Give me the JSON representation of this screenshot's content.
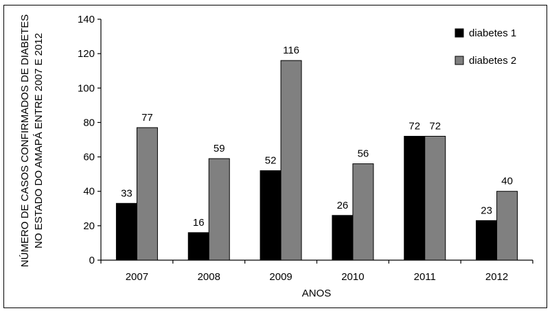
{
  "chart_data": {
    "type": "bar",
    "categories": [
      "2007",
      "2008",
      "2009",
      "2010",
      "2011",
      "2012"
    ],
    "series": [
      {
        "name": "diabetes 1",
        "values": [
          33,
          16,
          52,
          26,
          72,
          23
        ],
        "color": "#000000"
      },
      {
        "name": "diabetes 2",
        "values": [
          77,
          59,
          116,
          56,
          72,
          40
        ],
        "color": "#808080"
      }
    ],
    "xlabel": "ANOS",
    "ylabel_line1": "NÚMERO DE CASOS CONFIRMADOS DE DIABETES",
    "ylabel_line2": "NO ESTADO DO AMAPÁ ENTRE 2007 E 2012",
    "ylim": [
      0,
      140
    ],
    "yticks": [
      0,
      20,
      40,
      60,
      80,
      100,
      120,
      140
    ],
    "legend_position": "top-right",
    "grid": false
  }
}
